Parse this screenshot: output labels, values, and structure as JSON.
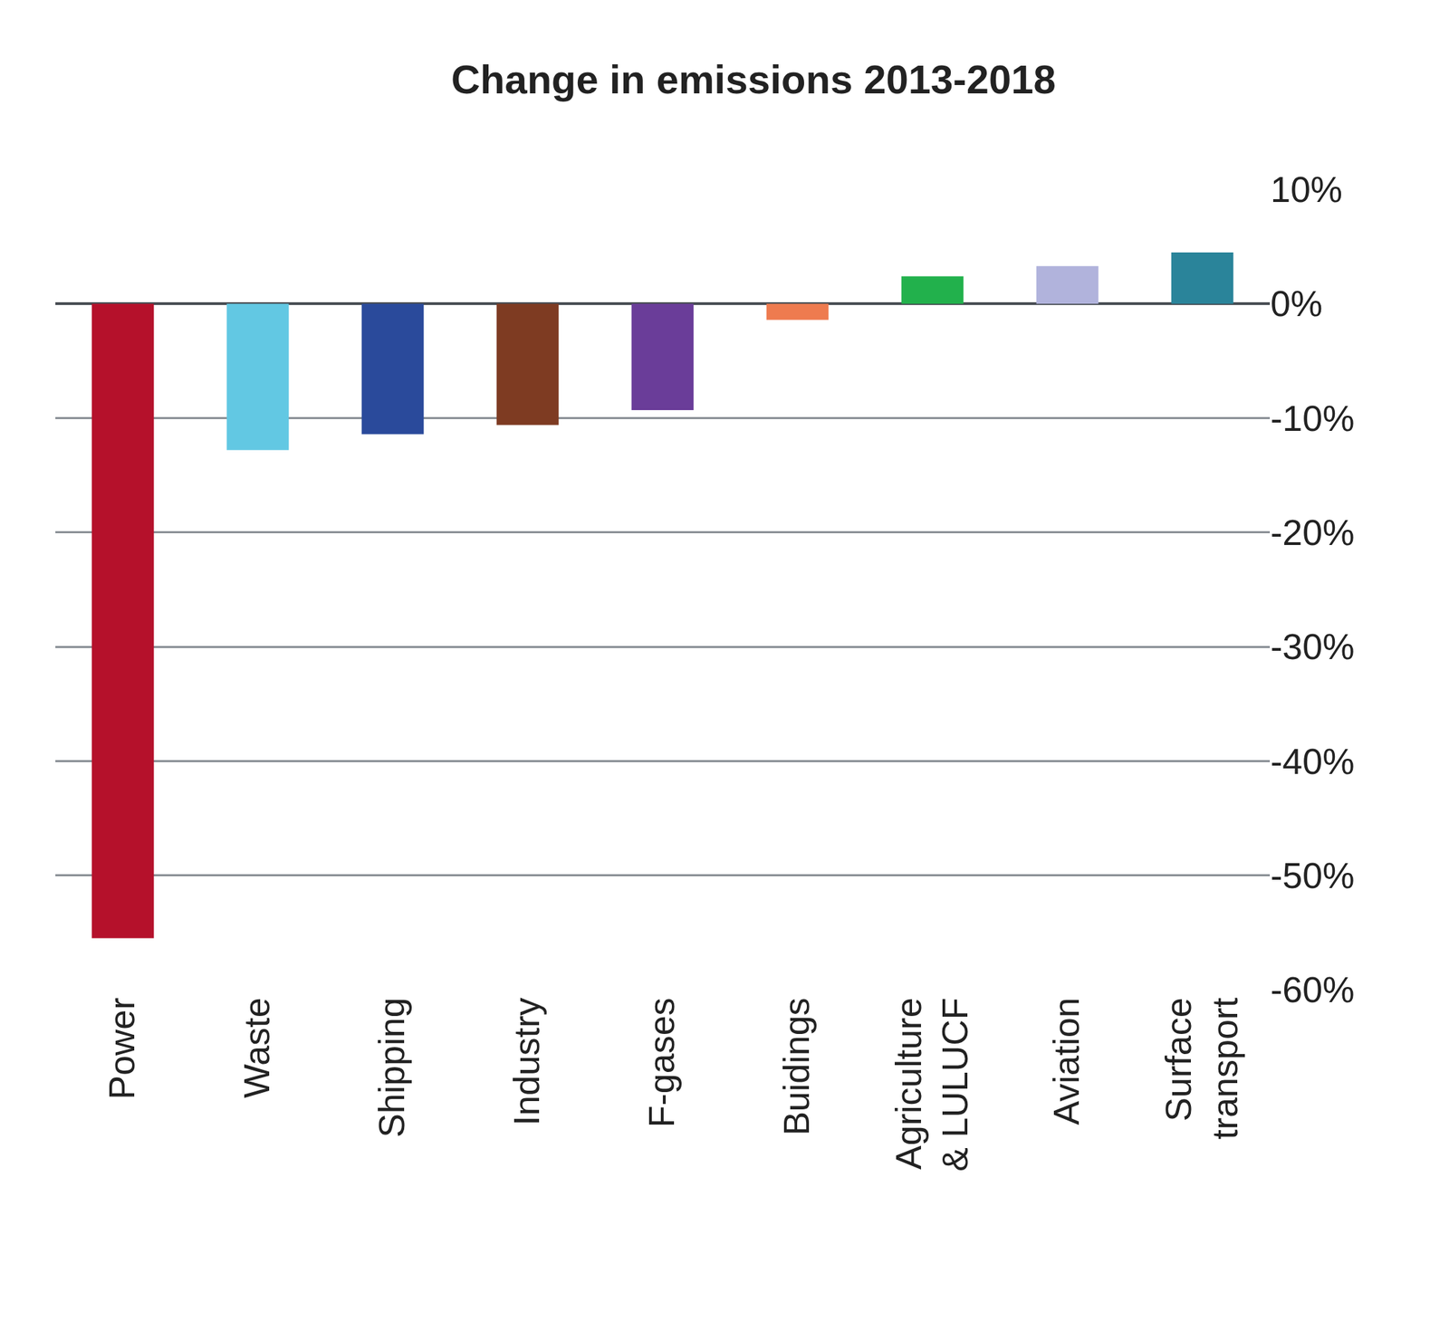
{
  "chart_data": {
    "type": "bar",
    "title": "Change in emissions 2013-2018",
    "categories": [
      "Power",
      "Waste",
      "Shipping",
      "Industry",
      "F-gases",
      "Buidings",
      "Agriculture & LULUCF",
      "Aviation",
      "Surface transport"
    ],
    "values": [
      -55.5,
      -12.8,
      -11.4,
      -10.6,
      -9.3,
      -1.4,
      2.4,
      3.3,
      4.5
    ],
    "colors": [
      "#b5112b",
      "#62c8e3",
      "#2a4a9b",
      "#7e3b22",
      "#6a3d99",
      "#ee7b4f",
      "#22b14c",
      "#b1b3dc",
      "#2a849a"
    ],
    "ylim": [
      -60,
      10
    ],
    "yticks": [
      {
        "value": -60,
        "label": "-60%"
      },
      {
        "value": -50,
        "label": "-50%"
      },
      {
        "value": -40,
        "label": "-40%"
      },
      {
        "value": -30,
        "label": "-30%"
      },
      {
        "value": -20,
        "label": "-20%"
      },
      {
        "value": -10,
        "label": "-10%"
      },
      {
        "value": 0,
        "label": "0%"
      },
      {
        "value": 10,
        "label": "10%"
      }
    ],
    "grid": true
  }
}
